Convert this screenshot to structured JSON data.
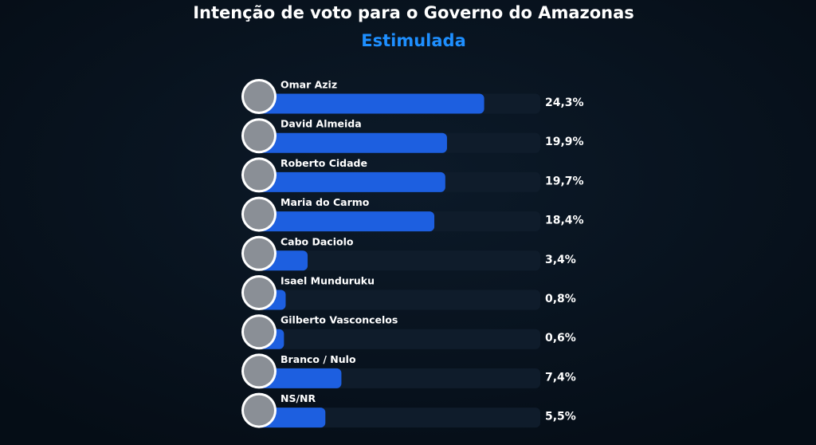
{
  "chart_data": {
    "type": "bar",
    "title": "Intenção de voto para o Governo do Amazonas",
    "subtitle": "Estimulada",
    "categories": [
      "Omar Aziz",
      "David Almeida",
      "Roberto Cidade",
      "Maria do Carmo",
      "Cabo Daciolo",
      "Isael Munduruku",
      "Gilberto Vasconcelos",
      "Branco / Nulo",
      "NS/NR"
    ],
    "values": [
      24.3,
      19.9,
      19.7,
      18.4,
      3.4,
      0.8,
      0.6,
      7.4,
      5.5
    ],
    "value_labels": [
      "24,3%",
      "19,9%",
      "19,7%",
      "18,4%",
      "3,4%",
      "0,8%",
      "0,6%",
      "7,4%",
      "5,5%"
    ],
    "color": "#1d5fe0"
  }
}
